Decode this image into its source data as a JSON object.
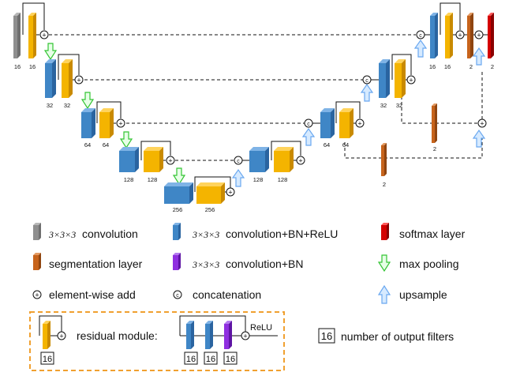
{
  "colors": {
    "conv": "#8f8f8f",
    "blue": "#3f86c6",
    "yellow": "#f4b400",
    "orange": "#c7641c",
    "red": "#d40000",
    "purple": "#8f2fe0",
    "green_arrow": "#33c433",
    "blue_arrow": "#8cc2ff"
  },
  "blocks": {
    "enc1": [
      "16",
      "16"
    ],
    "enc2": [
      "32",
      "32"
    ],
    "enc3": [
      "64",
      "64"
    ],
    "enc4": [
      "128",
      "128"
    ],
    "bottom": [
      "256",
      "256"
    ],
    "dec4": [
      "128",
      "128"
    ],
    "dec3": [
      "64",
      "64"
    ],
    "dec2": [
      "32",
      "32"
    ],
    "dec1": [
      "16",
      "16"
    ],
    "seg_top": "2",
    "softmax": "2",
    "seg_mid": "2",
    "seg_low": "2"
  },
  "legend": {
    "conv_gray_dims": "3×3×3",
    "conv_gray_label": "convolution",
    "conv_blue_dims": "3×3×3",
    "conv_blue_label": "convolution+BN+ReLU",
    "softmax_label": "softmax layer",
    "seg_label": "segmentation layer",
    "conv_purple_dims": "3×3×3",
    "conv_purple_label": "convolution+BN",
    "maxpool_label": "max pooling",
    "add_label": "element-wise add",
    "concat_label": "concatenation",
    "upsample_label": "upsample",
    "residual_label": "residual module:",
    "relu_label": "ReLU",
    "filters_box_value": "16",
    "filters_label": "number of output filters",
    "residual_box_values": [
      "16",
      "16",
      "16",
      "16"
    ]
  }
}
